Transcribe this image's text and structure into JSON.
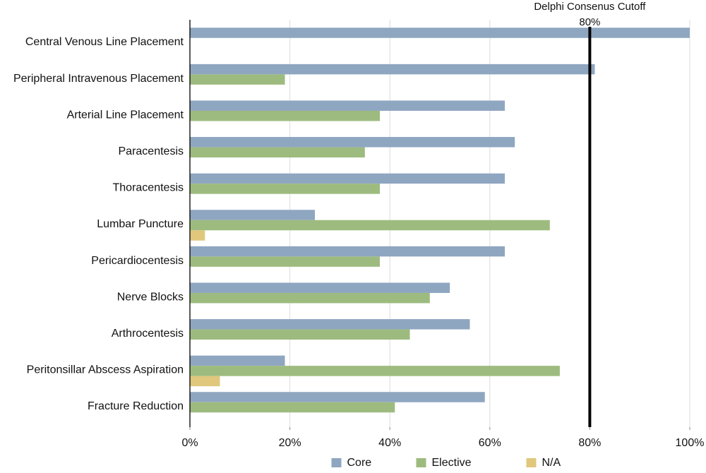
{
  "chart_data": {
    "type": "bar",
    "orientation": "horizontal",
    "categories": [
      "Central Venous Line Placement",
      "Peripheral Intravenous Placement",
      "Arterial Line Placement",
      "Paracentesis",
      "Thoracentesis",
      "Lumbar Puncture",
      "Pericardiocentesis",
      "Nerve Blocks",
      "Arthrocentesis",
      "Peritonsillar Abscess Aspiration",
      "Fracture Reduction"
    ],
    "series": [
      {
        "name": "Core",
        "color": "#8fa6c1",
        "values": [
          100,
          81,
          63,
          65,
          63,
          25,
          63,
          52,
          56,
          19,
          59
        ]
      },
      {
        "name": "Elective",
        "color": "#9dbb7e",
        "values": [
          0,
          19,
          38,
          35,
          38,
          72,
          38,
          48,
          44,
          74,
          41
        ]
      },
      {
        "name": "N/A",
        "color": "#e0c77c",
        "values": [
          0,
          0,
          0,
          0,
          0,
          3,
          0,
          0,
          0,
          6,
          0
        ]
      }
    ],
    "xlim": [
      0,
      100
    ],
    "xticks": [
      0,
      20,
      40,
      60,
      80,
      100
    ],
    "xtick_labels": [
      "0%",
      "20%",
      "40%",
      "60%",
      "80%",
      "100%"
    ],
    "grid": true,
    "legend_position": "bottom",
    "reference_line": {
      "value": 80,
      "label": "Delphi Consenus Cutoff",
      "value_label": "80%",
      "color": "#000000"
    }
  }
}
